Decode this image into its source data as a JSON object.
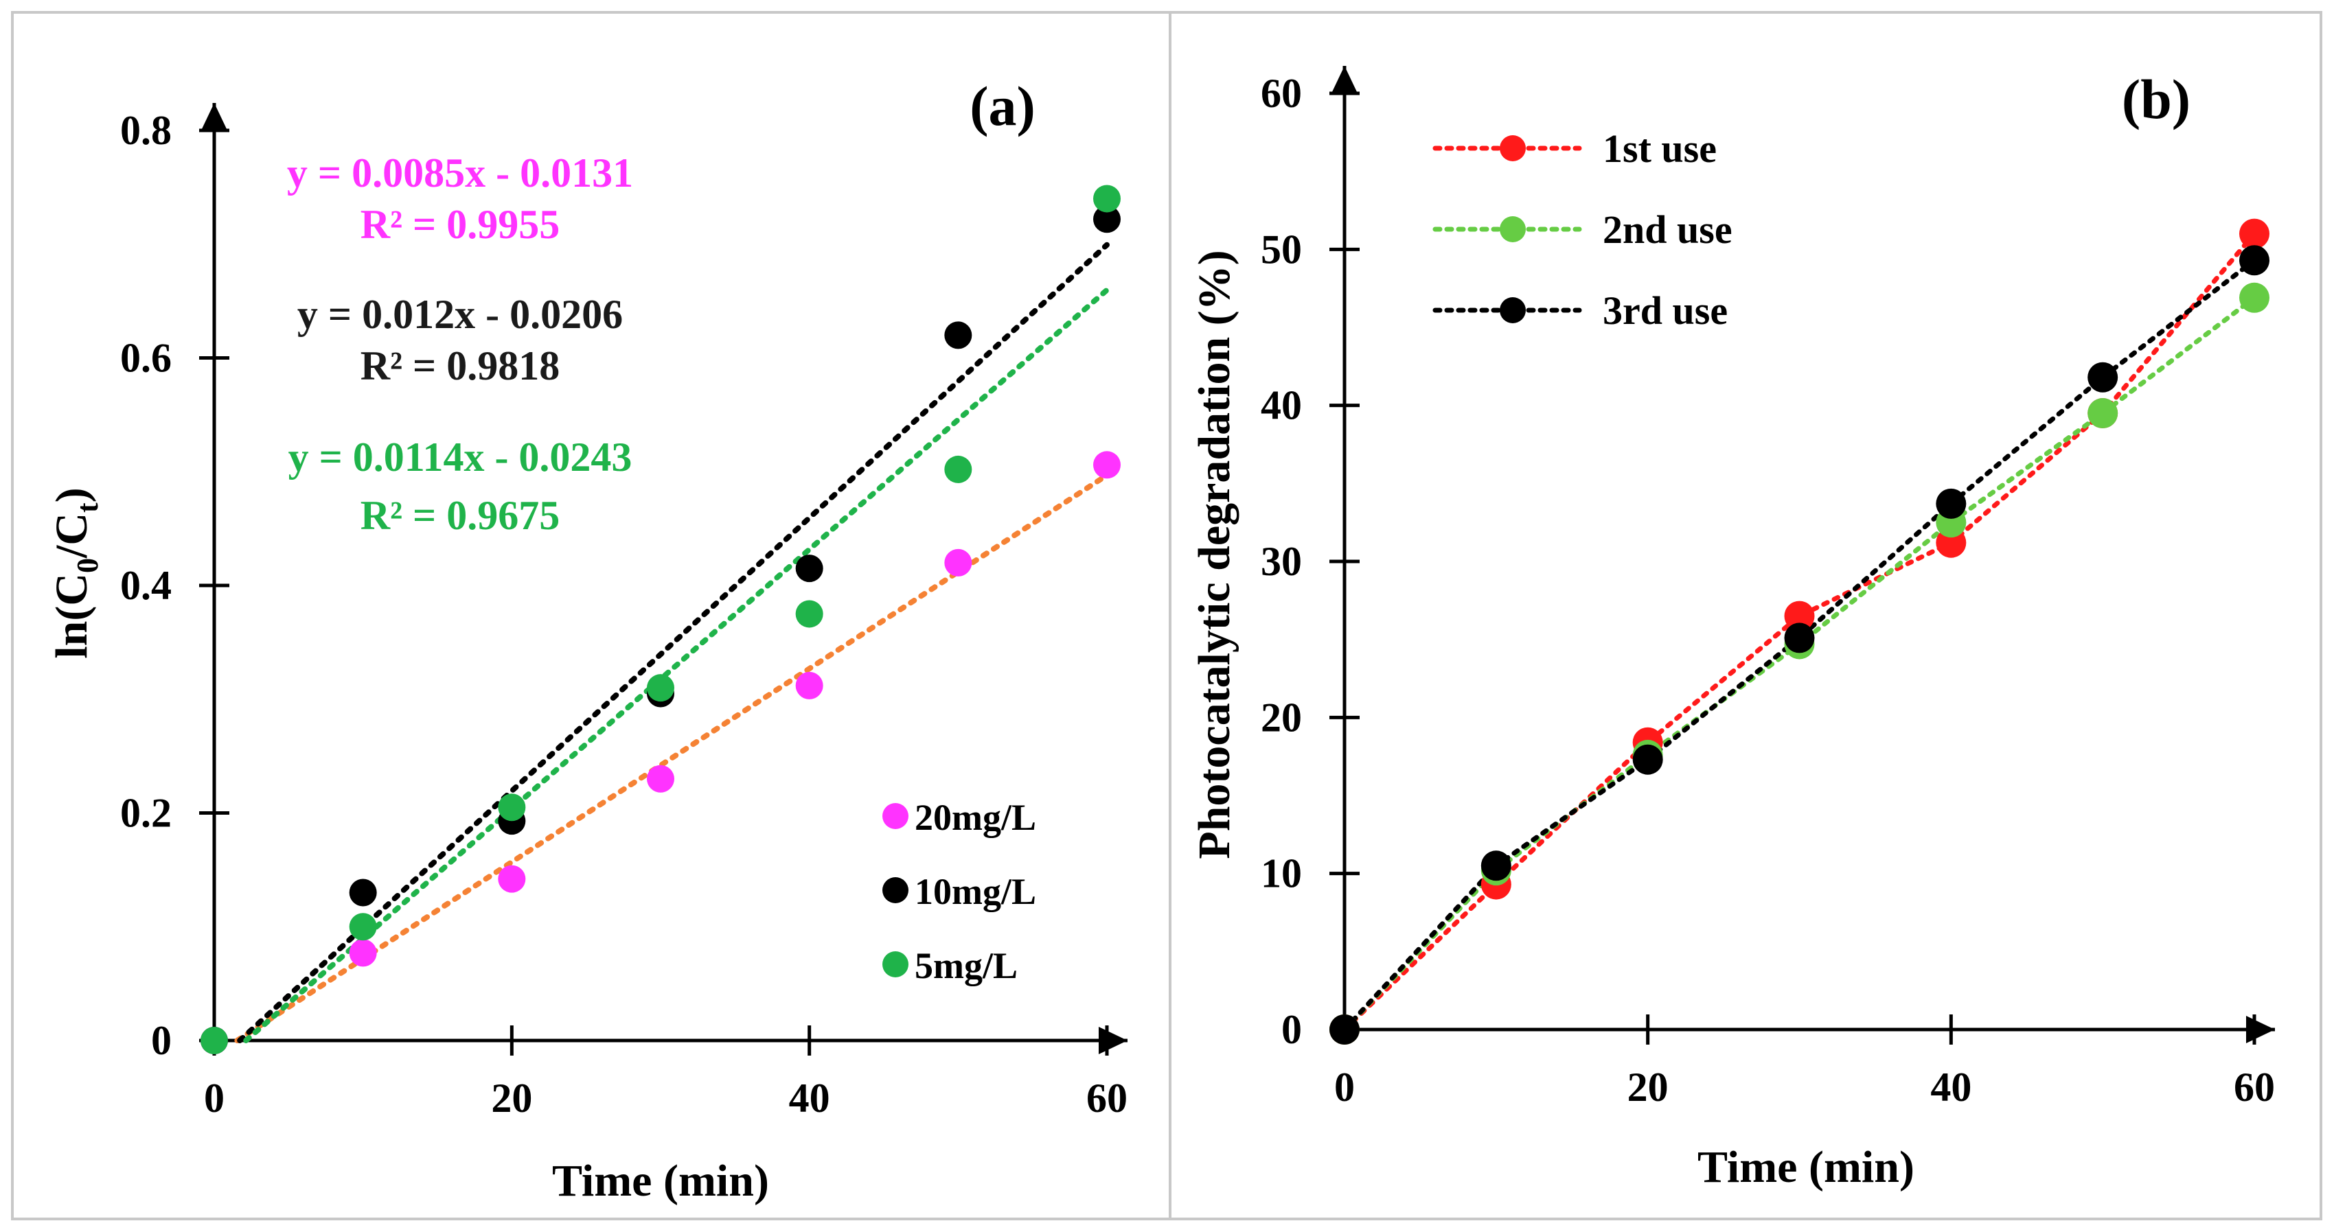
{
  "chart_data": [
    {
      "type": "scatter",
      "panel_label": "(a)",
      "xlabel": "Time (min)",
      "ylabel_main": "ln(C",
      "ylabel_sub0": "0",
      "ylabel_mid": "/C",
      "ylabel_subt": "t",
      "ylabel_end": ")",
      "xlim": [
        0,
        60
      ],
      "ylim": [
        0,
        0.8
      ],
      "x_ticks": [
        0,
        20,
        40,
        60
      ],
      "y_ticks": [
        0,
        0.2,
        0.4,
        0.6,
        0.8
      ],
      "x_tick_labels": [
        "0",
        "20",
        "40",
        "60"
      ],
      "y_tick_labels": [
        "0",
        "0.2",
        "0.4",
        "0.6",
        "0.8"
      ],
      "legend_position": "bottom-right",
      "x": [
        0,
        10,
        20,
        30,
        40,
        50,
        60
      ],
      "series": [
        {
          "name": "20mg/L",
          "color": "#ff33ff",
          "trend_color": "#f58234",
          "values": [
            0,
            0.077,
            0.142,
            0.23,
            0.312,
            0.42,
            0.506
          ],
          "trend": {
            "slope": 0.0085,
            "intercept": -0.0131
          },
          "equation": "y = 0.0085x - 0.0131",
          "r2": "R² = 0.9955",
          "label_color": "#ff33ff"
        },
        {
          "name": "10mg/L",
          "color": "#000000",
          "trend_color": "#000000",
          "values": [
            0,
            0.13,
            0.193,
            0.305,
            0.415,
            0.62,
            0.722
          ],
          "trend": {
            "slope": 0.012,
            "intercept": -0.0206
          },
          "equation": "y = 0.012x - 0.0206",
          "r2": "R² = 0.9818",
          "label_color": "#1a1a1a"
        },
        {
          "name": "5mg/L",
          "color": "#1fb34a",
          "trend_color": "#1fb34a",
          "values": [
            0,
            0.1,
            0.205,
            0.31,
            0.375,
            0.502,
            0.74
          ],
          "trend": {
            "slope": 0.0114,
            "intercept": -0.0243
          },
          "equation": "y = 0.0114x - 0.0243",
          "r2": "R² = 0.9675",
          "label_color": "#1fb34a"
        }
      ]
    },
    {
      "type": "line",
      "panel_label": "(b)",
      "xlabel": "Time (min)",
      "ylabel": "Photocatalytic degradation (%)",
      "xlim": [
        0,
        60
      ],
      "ylim": [
        0,
        60
      ],
      "x_ticks": [
        0,
        20,
        40,
        60
      ],
      "y_ticks": [
        0,
        10,
        20,
        30,
        40,
        50,
        60
      ],
      "x_tick_labels": [
        "0",
        "20",
        "40",
        "60"
      ],
      "y_tick_labels": [
        "0",
        "10",
        "20",
        "30",
        "40",
        "50",
        "60"
      ],
      "legend_position": "top-left",
      "x": [
        0,
        10,
        20,
        30,
        40,
        50,
        60
      ],
      "series": [
        {
          "name": "1st use",
          "color": "#ff1a1a",
          "values": [
            0,
            9.3,
            18.4,
            26.5,
            31.2,
            39.5,
            51.0
          ]
        },
        {
          "name": "2nd use",
          "color": "#66cc44",
          "values": [
            0,
            10.2,
            17.6,
            24.7,
            32.5,
            39.5,
            46.9
          ]
        },
        {
          "name": "3rd use",
          "color": "#000000",
          "values": [
            0,
            10.5,
            17.3,
            25.1,
            33.7,
            41.8,
            49.3
          ]
        }
      ]
    }
  ]
}
